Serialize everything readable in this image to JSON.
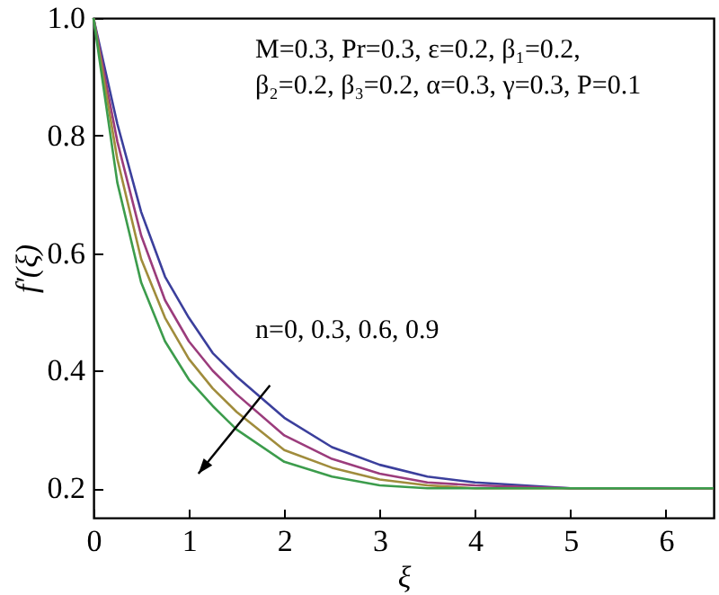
{
  "chart_data": {
    "type": "line",
    "xlabel": "ξ",
    "ylabel": "f′(ξ)",
    "xlim": [
      0,
      6.5
    ],
    "ylim": [
      0.15,
      1.0
    ],
    "xticks": [
      0,
      1,
      2,
      3,
      4,
      5,
      6
    ],
    "yticks": [
      {
        "value": 0.2,
        "label": "0.2"
      },
      {
        "value": 0.4,
        "label": "0.4"
      },
      {
        "value": 0.6,
        "label": "0.6"
      },
      {
        "value": 0.8,
        "label": "0.8"
      },
      {
        "value": 1,
        "label": "1.0"
      }
    ],
    "x": [
      0,
      0.25,
      0.5,
      0.75,
      1.0,
      1.25,
      1.5,
      2.0,
      2.5,
      3.0,
      3.5,
      4.0,
      5.0,
      6.5
    ],
    "series": [
      {
        "color": "#3b3f9c",
        "values": [
          1.0,
          0.82,
          0.67,
          0.56,
          0.49,
          0.43,
          0.39,
          0.32,
          0.27,
          0.24,
          0.22,
          0.21,
          0.2,
          0.2
        ]
      },
      {
        "color": "#9b3c7c",
        "values": [
          1.0,
          0.79,
          0.63,
          0.52,
          0.45,
          0.4,
          0.36,
          0.29,
          0.25,
          0.225,
          0.21,
          0.205,
          0.2,
          0.2
        ]
      },
      {
        "color": "#a08c3c",
        "values": [
          1.0,
          0.76,
          0.59,
          0.49,
          0.42,
          0.37,
          0.33,
          0.265,
          0.235,
          0.215,
          0.205,
          0.2,
          0.2,
          0.2
        ]
      },
      {
        "color": "#3c9c4c",
        "values": [
          1.0,
          0.72,
          0.55,
          0.45,
          0.385,
          0.34,
          0.3,
          0.245,
          0.22,
          0.205,
          0.2,
          0.2,
          0.2,
          0.2
        ]
      }
    ],
    "annotations": [
      "M=0.3, Pr=0.3, ε=0.2, β₁=0.2,",
      "β₂=0.2, β₃=0.2, α=0.3, γ=0.3, P=0.1",
      "n=0, 0.3, 0.6, 0.9"
    ],
    "grid": false,
    "marker": "none",
    "line_style": "solid"
  }
}
